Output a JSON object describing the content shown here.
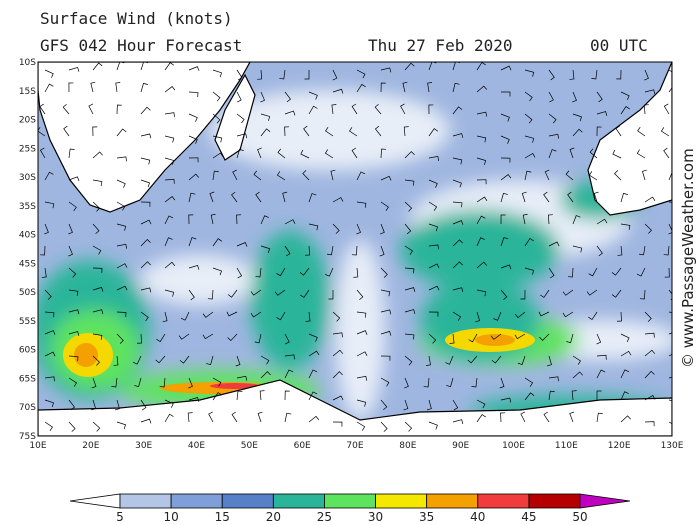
{
  "header": {
    "title": "Surface Wind (knots)",
    "forecast": "GFS 042 Hour Forecast",
    "date": "Thu 27 Feb 2020",
    "time": "00 UTC"
  },
  "map": {
    "latitudes": [
      "10S",
      "15S",
      "20S",
      "25S",
      "30S",
      "35S",
      "40S",
      "45S",
      "50S",
      "55S",
      "60S",
      "65S",
      "70S",
      "75S"
    ],
    "longitudes": [
      "10E",
      "20E",
      "30E",
      "40E",
      "50E",
      "60E",
      "70E",
      "80E",
      "90E",
      "100E",
      "110E",
      "120E",
      "130E"
    ]
  },
  "colorbar": {
    "labels": [
      5,
      10,
      15,
      20,
      25,
      30,
      35,
      40,
      45,
      50
    ]
  },
  "credit": "© www.PassageWeather.com"
}
